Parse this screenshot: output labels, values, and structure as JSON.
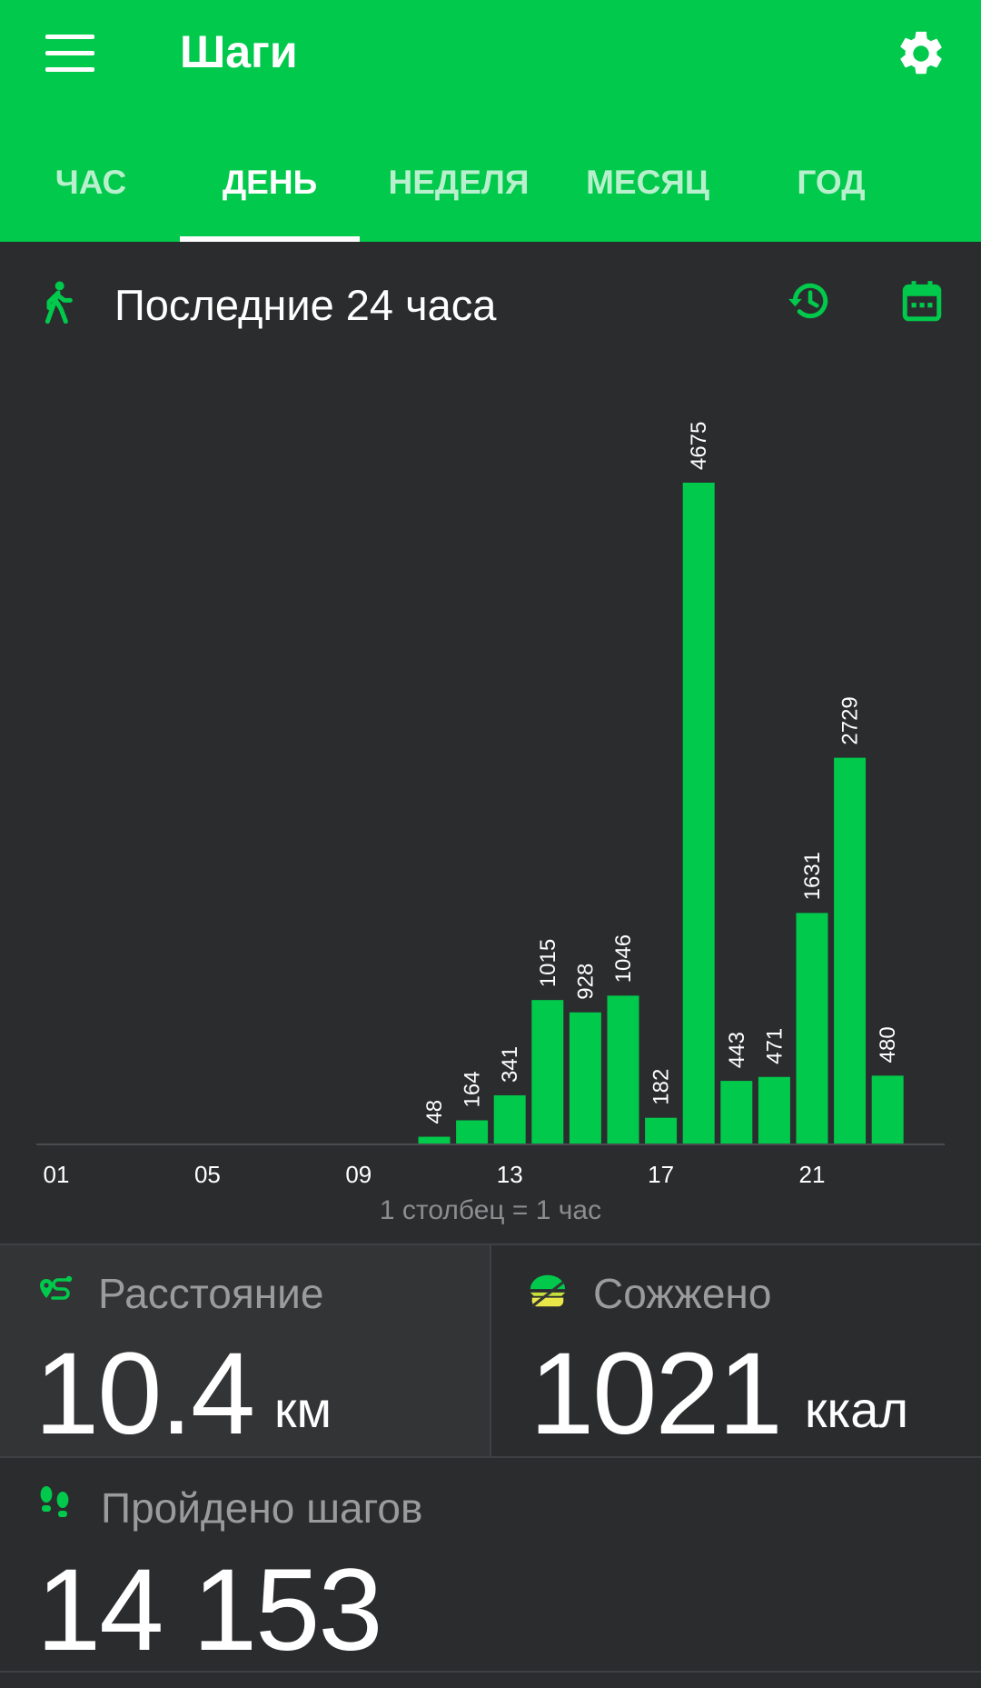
{
  "appbar": {
    "title": "Шаги",
    "menu_icon": "menu-icon",
    "settings_icon": "gear-icon",
    "tabs": [
      {
        "label": "ЧАС",
        "active": false
      },
      {
        "label": "ДЕНЬ",
        "active": true
      },
      {
        "label": "НЕДЕЛЯ",
        "active": false
      },
      {
        "label": "МЕСЯЦ",
        "active": false
      },
      {
        "label": "ГОД",
        "active": false
      }
    ]
  },
  "period": {
    "title": "Последние 24 часа",
    "history_icon": "history-icon",
    "calendar_icon": "calendar-icon"
  },
  "colors": {
    "accent": "#00c94b",
    "background": "#2b2c2e",
    "muted": "#9a9b9d"
  },
  "chart_data": {
    "type": "bar",
    "x": [
      1,
      2,
      3,
      4,
      5,
      6,
      7,
      8,
      9,
      10,
      11,
      12,
      13,
      14,
      15,
      16,
      17,
      18,
      19,
      20,
      21,
      22,
      23,
      24
    ],
    "values": [
      0,
      0,
      0,
      0,
      0,
      0,
      0,
      0,
      0,
      0,
      48,
      164,
      341,
      1015,
      928,
      1046,
      182,
      4675,
      443,
      471,
      1631,
      2729,
      480,
      0
    ],
    "xtick_labels": [
      "01",
      "05",
      "09",
      "13",
      "17",
      "21"
    ],
    "xtick_values": [
      1,
      5,
      9,
      13,
      17,
      21
    ],
    "data_labels": true,
    "note": "1 столбец = 1 час",
    "color": "#00c94b"
  },
  "stats": {
    "distance": {
      "label": "Расстояние",
      "value": "10.4",
      "unit": "км",
      "icon": "route-icon"
    },
    "calories": {
      "label": "Сожжено",
      "value": "1021",
      "unit": "ккал",
      "icon": "burger-icon"
    },
    "steps": {
      "label": "Пройдено шагов",
      "value": "14 153",
      "icon": "footprints-icon"
    }
  }
}
